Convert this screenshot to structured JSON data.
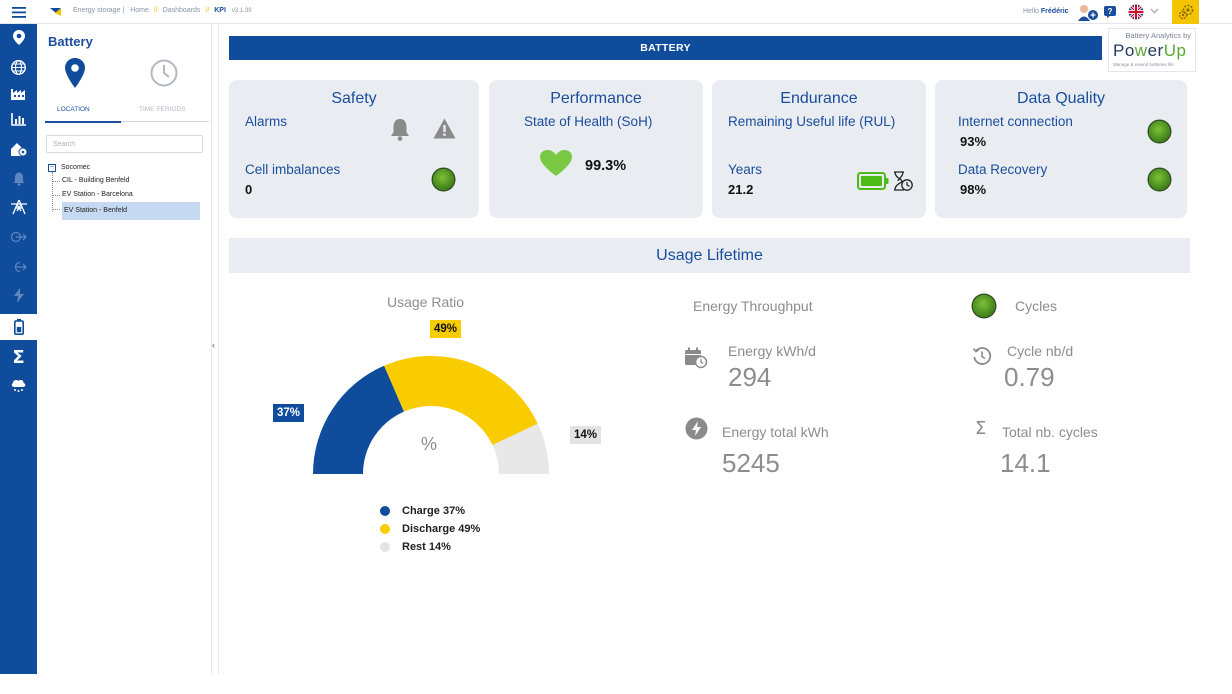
{
  "topbar": {
    "breadcrumb": {
      "app": "Energy storage |",
      "home": "Home",
      "separator": "//",
      "dashboards": "Dashboards",
      "current": "KPI",
      "version": "v3.1.39"
    },
    "hello": "Hello",
    "user": "Frédéric"
  },
  "sidebar": {
    "title": "Battery",
    "tabs": [
      "LOCATION",
      "TIME PERIODS"
    ],
    "search_placeholder": "Search",
    "tree": {
      "root": "Socomec",
      "toggle": "−",
      "children": [
        "CIL - Building Benfeld",
        "EV Station - Barcelona",
        "EV Station - Benfeld"
      ],
      "selected_index": 2
    }
  },
  "header": {
    "banner": "BATTERY",
    "brand": {
      "by": "Battery Analytics by",
      "name_a": "Po",
      "name_w": "w",
      "name_er": "er",
      "name_up": "Up",
      "tagline": "Manage & extend batteries life"
    }
  },
  "cards": {
    "safety": {
      "title": "Safety",
      "alarms_label": "Alarms",
      "cell_label": "Cell imbalances",
      "cell_value": "0"
    },
    "performance": {
      "title": "Performance",
      "soh_label": "State of Health (SoH)",
      "soh_value": "99.3%"
    },
    "endurance": {
      "title": "Endurance",
      "rul_label": "Remaining Useful life (RUL)",
      "years_label": "Years",
      "years_value": "21.2"
    },
    "quality": {
      "title": "Data Quality",
      "internet_label": "Internet connection",
      "internet_value": "93%",
      "recovery_label": "Data Recovery",
      "recovery_value": "98%"
    }
  },
  "usage": {
    "title": "Usage Lifetime",
    "ratio": {
      "title": "Usage Ratio",
      "center": "%",
      "segments": [
        {
          "name": "Charge",
          "value": 37,
          "label": "37%",
          "legend": "Charge 37%",
          "color": "#0f4c9c"
        },
        {
          "name": "Discharge",
          "value": 49,
          "label": "49%",
          "legend": "Discharge 49%",
          "color": "#f9cc00"
        },
        {
          "name": "Rest",
          "value": 14,
          "label": "14%",
          "legend": "Rest 14%",
          "color": "#e8e8e8"
        }
      ]
    },
    "energy": {
      "title": "Energy Throughput",
      "per_day_label": "Energy kWh/d",
      "per_day_value": "294",
      "total_label": "Energy total kWh",
      "total_value": "5245"
    },
    "cycles": {
      "title": "Cycles",
      "per_day_label": "Cycle nb/d",
      "per_day_value": "0.79",
      "total_label": "Total nb. cycles",
      "total_value": "14.1"
    }
  },
  "colors": {
    "primary": "#0f4c9c",
    "accent": "#f9cc00",
    "ok": "#5aa832",
    "heart": "#7ac943"
  }
}
